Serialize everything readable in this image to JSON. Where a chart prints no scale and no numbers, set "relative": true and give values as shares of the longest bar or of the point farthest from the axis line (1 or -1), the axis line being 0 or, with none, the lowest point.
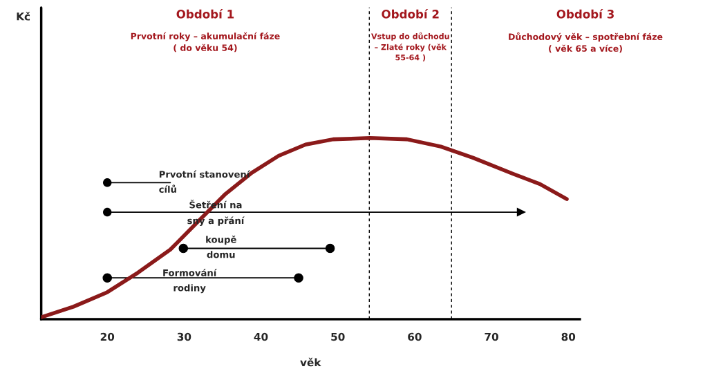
{
  "chart_data": {
    "type": "line",
    "relative": true,
    "xlabel": "věk",
    "xlim": [
      11.4,
      81.5
    ],
    "xticks": [
      20,
      30,
      40,
      50,
      60,
      70,
      80
    ],
    "grid": false,
    "series": [
      {
        "color": "#8b1a1a",
        "marker": "none",
        "x": [
          11.4,
          15.6,
          20,
          24.0,
          28.2,
          32.0,
          35.4,
          38.8,
          42.3,
          45.8,
          49.4,
          54.2,
          59.0,
          63.4,
          67.6,
          72.9,
          76.3,
          79.8
        ],
        "values": [
          0.011,
          0.069,
          0.149,
          0.257,
          0.384,
          0.547,
          0.692,
          0.808,
          0.902,
          0.964,
          0.993,
          1.0,
          0.993,
          0.953,
          0.891,
          0.801,
          0.746,
          0.663
        ]
      },
      {
        "color": "#000000",
        "marker": "none",
        "x": [
          20,
          28.2
        ],
        "values": [
          0.754,
          0.754
        ]
      },
      {
        "color": "#000000",
        "marker": "none",
        "x": [
          20,
          73.9
        ],
        "values": [
          0.591,
          0.591
        ]
      },
      {
        "color": "#000000",
        "marker": "circle",
        "x": [
          29.9,
          49.0
        ],
        "values": [
          0.391,
          0.391
        ]
      },
      {
        "color": "#000000",
        "marker": "circle",
        "x": [
          20,
          44.9
        ],
        "values": [
          0.228,
          0.228
        ]
      },
      {
        "type": "scatter",
        "color": "#000000",
        "marker": "circle",
        "x": [
          20,
          20
        ],
        "values": [
          0.754,
          0.591
        ]
      },
      {
        "type": "scatter",
        "color": "#000000",
        "marker": "triangle",
        "x": [
          73.9
        ],
        "values": [
          0.591
        ]
      }
    ],
    "ref_lines": [
      {
        "axis": "x",
        "value": 11.4,
        "line_style": "solid",
        "color": "#000000"
      },
      {
        "axis": "x",
        "value": 54.1,
        "line_style": "dashed",
        "color": "#000000"
      },
      {
        "axis": "x",
        "value": 64.8,
        "line_style": "dashed",
        "color": "#000000"
      }
    ],
    "annotations": [
      "Kč",
      "Prvotní stanovení\ncílů",
      {
        "text": "Šetření na\nsny a přání",
        "x": 34.1,
        "y": 0.583
      },
      {
        "text": "koupě\ndomu",
        "x": 34.8,
        "y": 0.395
      },
      {
        "text": "Formování\nrodiny",
        "x": 30.7,
        "y": 0.21
      },
      "Období 1\nPrvotní roky – akumulační fáze\n( do věku 54)",
      "Období 2\nVstup do důchodu\n– Zlaté roky (věk\n55-64 )",
      "Období 3\nDůchodový věk – spotřební fáze\n( věk 65 a více)"
    ]
  }
}
